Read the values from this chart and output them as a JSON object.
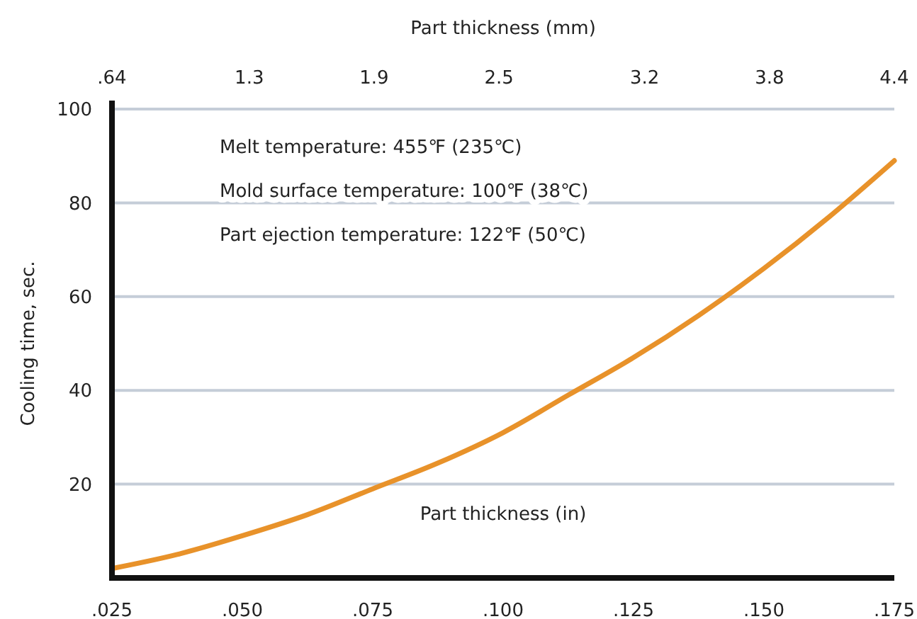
{
  "chart_data": {
    "type": "line",
    "xlabel": "Part thickness (in)",
    "x2label": "Part thickness (mm)",
    "ylabel": "Cooling time, sec.",
    "annotations": [
      "Melt temperature: 455℉ (235℃)",
      "Mold surface temperature: 100℉ (38℃)",
      "Part ejection temperature: 122℉ (50℃)"
    ],
    "x": [
      0.025,
      0.0375,
      0.05,
      0.0625,
      0.075,
      0.0875,
      0.1,
      0.1125,
      0.125,
      0.1375,
      0.15,
      0.1625,
      0.175
    ],
    "series": [
      {
        "color": "#e8922a",
        "values": [
          2,
          5,
          9,
          13.5,
          19,
          24.5,
          31,
          39,
          47,
          56,
          66,
          77,
          89
        ]
      }
    ],
    "xlim": [
      0.025,
      0.175
    ],
    "xticks": [
      {
        "value": 0.025,
        "label": ".025"
      },
      {
        "value": 0.05,
        "label": ".050"
      },
      {
        "value": 0.075,
        "label": ".075"
      },
      {
        "value": 0.1,
        "label": ".100"
      },
      {
        "value": 0.125,
        "label": ".125"
      },
      {
        "value": 0.15,
        "label": ".150"
      },
      {
        "value": 0.175,
        "label": ".175"
      }
    ],
    "x2lim": [
      0.64,
      4.4
    ],
    "x2ticks": [
      {
        "value": 0.64,
        "label": ".64"
      },
      1.3,
      1.9,
      2.5,
      3.2,
      3.8,
      4.4
    ],
    "ylim": [
      0,
      100
    ],
    "yticks": [
      20,
      40,
      60,
      80,
      100
    ],
    "grid": "y",
    "marker": "none",
    "line_style": "solid"
  }
}
